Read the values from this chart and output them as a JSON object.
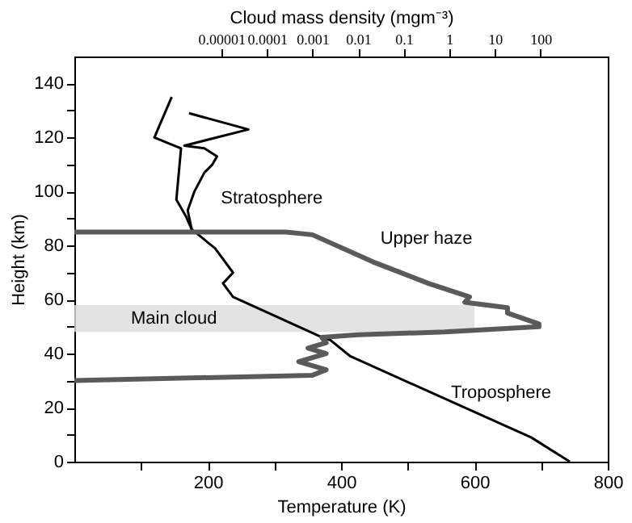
{
  "chart_data": {
    "type": "line",
    "xlabel": "Temperature (K)",
    "ylabel": "Height (km)",
    "x2label": "Cloud mass density (mgm⁻³)",
    "xlim": [
      0,
      800
    ],
    "xticks": [
      {
        "value": 100,
        "label": null
      },
      200,
      {
        "value": 300,
        "label": null
      },
      400,
      {
        "value": 500,
        "label": null
      },
      600,
      {
        "value": 700,
        "label": null
      },
      800
    ],
    "ylim": [
      0,
      150
    ],
    "yticks": [
      0,
      {
        "value": 10,
        "label": null
      },
      20,
      {
        "value": 30,
        "label": null
      },
      40,
      {
        "value": 50,
        "label": null
      },
      60,
      {
        "value": 70,
        "label": null
      },
      80,
      {
        "value": 90,
        "label": null
      },
      100,
      {
        "value": 110,
        "label": null
      },
      120,
      {
        "value": 130,
        "label": null
      },
      140
    ],
    "x2lim": [
      6e-09,
      3000
    ],
    "x2ticks": [
      {
        "value": 1e-05,
        "label": "0.00001"
      },
      {
        "value": 0.0001,
        "label": "0.0001"
      },
      {
        "value": 0.001,
        "label": "0.001"
      },
      {
        "value": 0.01,
        "label": "0.01"
      },
      0.1,
      1,
      10,
      100
    ],
    "log": "x2",
    "grid": false,
    "line_style": "solid",
    "marker": "none",
    "series": [
      {
        "color": "#000000",
        "x": [
          743,
          685,
          414,
          384,
          372,
          238,
          223,
          238,
          211,
          176,
          167,
          153,
          160,
          120,
          146
        ],
        "values": [
          0,
          9,
          39,
          45,
          46,
          61,
          66,
          70,
          79,
          86,
          91,
          97,
          116,
          120,
          135
        ]
      },
      {
        "color": "#000000",
        "x": [
          172,
          261,
          165,
          195,
          214,
          207,
          195,
          180,
          170,
          176
        ],
        "values": [
          129,
          123,
          117,
          116,
          113,
          110,
          107,
          100,
          93,
          86
        ]
      },
      {
        "type": "line",
        "axis": "x2",
        "color": "#5a5a5a",
        "x": [
          6e-09,
          0.00026,
          0.001,
          0.021,
          0.35,
          2.8,
          2.2,
          19,
          19,
          93,
          93,
          0.8,
          0.01,
          0.0016,
          0.002,
          0.0008,
          0.002,
          0.0005,
          0.002,
          0.001,
          6e-09
        ],
        "values": [
          85,
          85,
          84,
          74,
          66,
          61,
          59,
          57,
          55,
          51,
          50,
          48,
          47,
          46,
          44,
          42,
          40,
          37,
          34,
          32,
          30
        ]
      }
    ],
    "bands": [
      {
        "axis": "y",
        "from": 48,
        "to": 58,
        "label": "Main cloud",
        "color": "#dcdcdc"
      }
    ],
    "annotations": [
      "Stratosphere",
      "Upper haze",
      "Troposphere"
    ]
  }
}
